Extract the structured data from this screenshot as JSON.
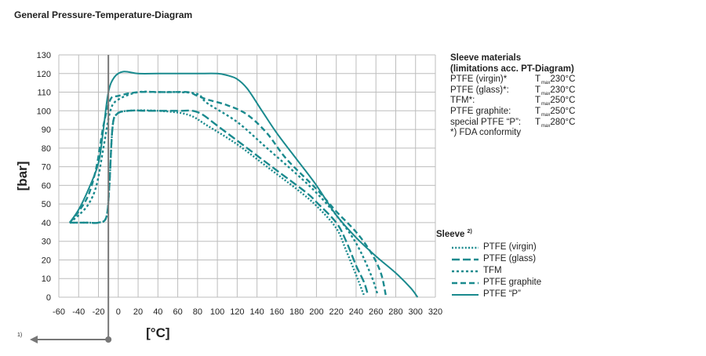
{
  "title": "General Pressure-Temperature-Diagram",
  "materials": {
    "title_line1": "Sleeve materials",
    "title_line2": "(limitations acc. PT-Diagram)",
    "tmax_label": "T",
    "tmax_sub": "max",
    "rows": [
      {
        "name": "PTFE (virgin)*",
        "tmax": "230°C"
      },
      {
        "name": "PTFE (glass)*:",
        "tmax": "230°C"
      },
      {
        "name": "TFM*:",
        "tmax": "250°C"
      },
      {
        "name": "PTFE graphite:",
        "tmax": "250°C"
      },
      {
        "name": "special PTFE “P”:",
        "tmax": "280°C"
      }
    ],
    "note": "*) FDA conformity"
  },
  "sleeve_legend": {
    "title": "Sleeve",
    "title_sup": "2)",
    "items": [
      "PTFE (virgin)",
      "PTFE (glass)",
      "TFM",
      "PTFE graphite",
      "PTFE “P”"
    ]
  },
  "footnote": {
    "sup": "1)",
    "text": ""
  },
  "colors": {
    "series": "#1a8a8e",
    "grid": "#bdbdbd",
    "axis": "#555555",
    "marker": "#777777",
    "text": "#222222"
  },
  "chart_data": {
    "type": "line",
    "xlabel": "[°C]",
    "ylabel": "[bar]",
    "xlim": [
      -60,
      320
    ],
    "ylim": [
      0,
      130
    ],
    "xticks": [
      -60,
      -40,
      -20,
      0,
      20,
      40,
      60,
      80,
      100,
      120,
      140,
      160,
      180,
      200,
      220,
      240,
      260,
      280,
      300,
      320
    ],
    "xtick_labels": [
      "-60",
      "-40",
      "-20",
      "0",
      "20",
      "40",
      "60",
      "80",
      "100",
      "120",
      "140",
      "160",
      "180",
      "200",
      "220",
      "240",
      "260",
      "280",
      "300",
      "320"
    ],
    "yticks": [
      0,
      10,
      20,
      30,
      40,
      50,
      60,
      70,
      80,
      90,
      100,
      110,
      120,
      130
    ],
    "grid": true,
    "marker_line_x": -10,
    "series": [
      {
        "name": "PTFE (virgin)",
        "dash": "dotted",
        "points": [
          [
            -49,
            40
          ],
          [
            -40,
            40
          ],
          [
            -30,
            40
          ],
          [
            -20,
            40
          ],
          [
            -12,
            43
          ],
          [
            -9,
            60
          ],
          [
            -6,
            90
          ],
          [
            -2,
            98
          ],
          [
            10,
            100
          ],
          [
            40,
            100
          ],
          [
            70,
            98
          ],
          [
            90,
            92
          ],
          [
            120,
            82
          ],
          [
            150,
            70
          ],
          [
            180,
            58
          ],
          [
            200,
            49
          ],
          [
            220,
            37
          ],
          [
            230,
            25
          ],
          [
            240,
            12
          ],
          [
            245,
            5
          ],
          [
            248,
            1
          ]
        ]
      },
      {
        "name": "PTFE (glass)",
        "dash": "long-dash",
        "points": [
          [
            -49,
            40
          ],
          [
            -40,
            40
          ],
          [
            -30,
            40
          ],
          [
            -20,
            40
          ],
          [
            -12,
            43
          ],
          [
            -9,
            60
          ],
          [
            -6,
            90
          ],
          [
            -2,
            98
          ],
          [
            10,
            100
          ],
          [
            30,
            100
          ],
          [
            50,
            100
          ],
          [
            65,
            100
          ],
          [
            75,
            100
          ],
          [
            85,
            98
          ],
          [
            100,
            92
          ],
          [
            130,
            80
          ],
          [
            160,
            68
          ],
          [
            190,
            56
          ],
          [
            200,
            51
          ],
          [
            220,
            40
          ],
          [
            230,
            30
          ],
          [
            240,
            17
          ],
          [
            248,
            8
          ],
          [
            252,
            1
          ]
        ]
      },
      {
        "name": "TFM",
        "dash": "short-dash",
        "points": [
          [
            -49,
            40
          ],
          [
            -40,
            44
          ],
          [
            -30,
            50
          ],
          [
            -22,
            60
          ],
          [
            -15,
            80
          ],
          [
            -8,
            100
          ],
          [
            0,
            106
          ],
          [
            20,
            110
          ],
          [
            40,
            110
          ],
          [
            60,
            110
          ],
          [
            80,
            109
          ],
          [
            90,
            104
          ],
          [
            120,
            94
          ],
          [
            150,
            80
          ],
          [
            180,
            66
          ],
          [
            200,
            56
          ],
          [
            220,
            44
          ],
          [
            240,
            29
          ],
          [
            255,
            12
          ],
          [
            262,
            1
          ]
        ]
      },
      {
        "name": "PTFE graphite",
        "dash": "dash",
        "points": [
          [
            -49,
            40
          ],
          [
            -40,
            46
          ],
          [
            -30,
            55
          ],
          [
            -22,
            70
          ],
          [
            -15,
            92
          ],
          [
            -8,
            106
          ],
          [
            0,
            108
          ],
          [
            20,
            110
          ],
          [
            50,
            110
          ],
          [
            70,
            110
          ],
          [
            80,
            108
          ],
          [
            90,
            106
          ],
          [
            110,
            103
          ],
          [
            130,
            98
          ],
          [
            150,
            88
          ],
          [
            170,
            74
          ],
          [
            200,
            58
          ],
          [
            220,
            46
          ],
          [
            240,
            35
          ],
          [
            255,
            24
          ],
          [
            265,
            13
          ],
          [
            270,
            1
          ]
        ]
      },
      {
        "name": "PTFE “P”",
        "dash": "solid",
        "points": [
          [
            -49,
            40
          ],
          [
            -40,
            47
          ],
          [
            -30,
            58
          ],
          [
            -20,
            72
          ],
          [
            -15,
            90
          ],
          [
            -10,
            110
          ],
          [
            -4,
            118
          ],
          [
            5,
            121
          ],
          [
            20,
            120
          ],
          [
            40,
            120
          ],
          [
            60,
            120
          ],
          [
            80,
            120
          ],
          [
            100,
            120
          ],
          [
            110,
            119
          ],
          [
            120,
            117
          ],
          [
            130,
            112
          ],
          [
            145,
            100
          ],
          [
            160,
            88
          ],
          [
            180,
            74
          ],
          [
            200,
            60
          ],
          [
            220,
            44
          ],
          [
            240,
            32
          ],
          [
            260,
            22
          ],
          [
            280,
            13
          ],
          [
            295,
            5
          ],
          [
            302,
            0
          ]
        ]
      }
    ]
  }
}
